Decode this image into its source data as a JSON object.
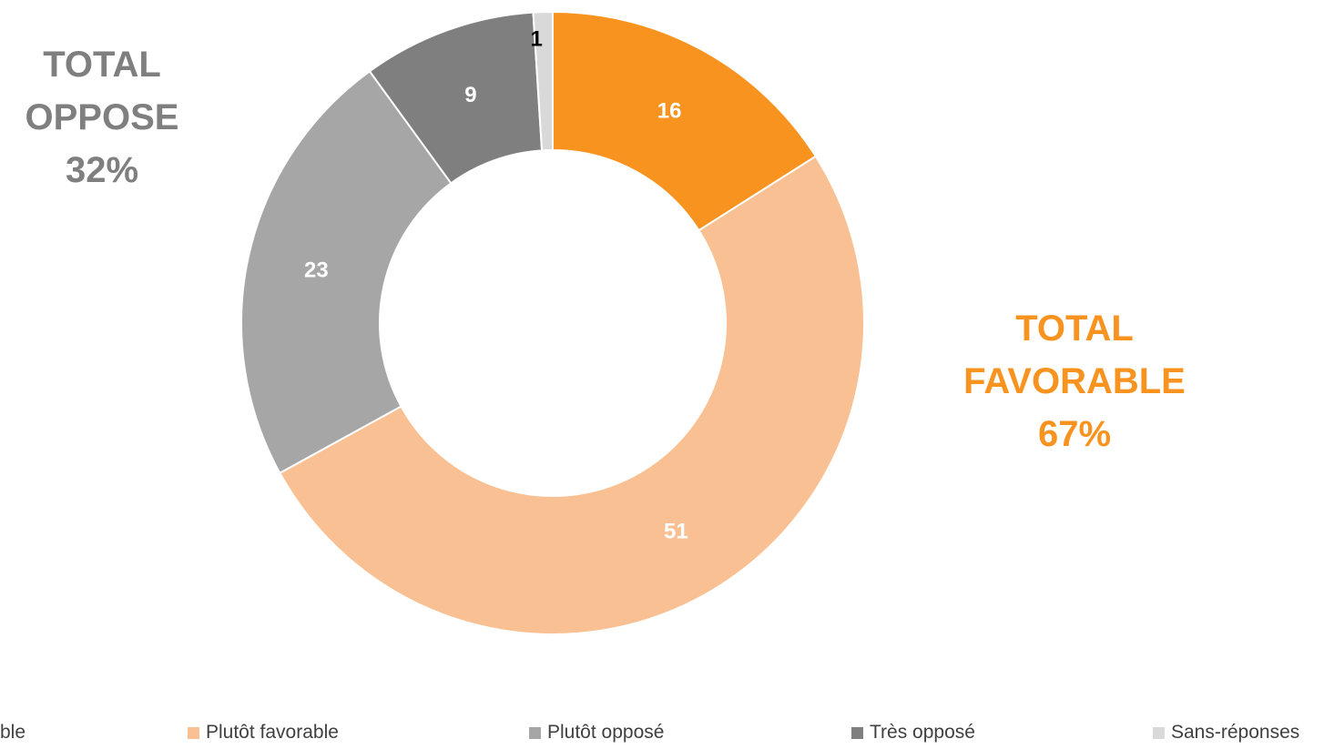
{
  "chart_data": {
    "type": "pie",
    "variant": "donut",
    "categories": [
      "Très favorable",
      "Plutôt favorable",
      "Plutôt opposé",
      "Très opposé",
      "Sans-réponses"
    ],
    "values": [
      16,
      51,
      23,
      9,
      1
    ],
    "data_labels": [
      "16",
      "51",
      "23",
      "9",
      "1"
    ],
    "colors": [
      "#F7931E",
      "#F9C193",
      "#A6A6A6",
      "#7F7F7F",
      "#D9D9D9"
    ],
    "label_colors": [
      "#FFFFFF",
      "#FFFFFF",
      "#FFFFFF",
      "#FFFFFF",
      "#000000"
    ],
    "legend_labels": [
      "ble",
      "Plutôt favorable",
      "Plutôt opposé",
      "Très opposé",
      "Sans-réponses"
    ],
    "legend_position": "bottom"
  },
  "annotations": {
    "oppose": {
      "line1": "TOTAL",
      "line2": "OPPOSE",
      "line3": "32%",
      "color": "#7F7F7F"
    },
    "favorable": {
      "line1": "TOTAL",
      "line2": "FAVORABLE",
      "line3": "67%",
      "color": "#F7931E"
    }
  }
}
